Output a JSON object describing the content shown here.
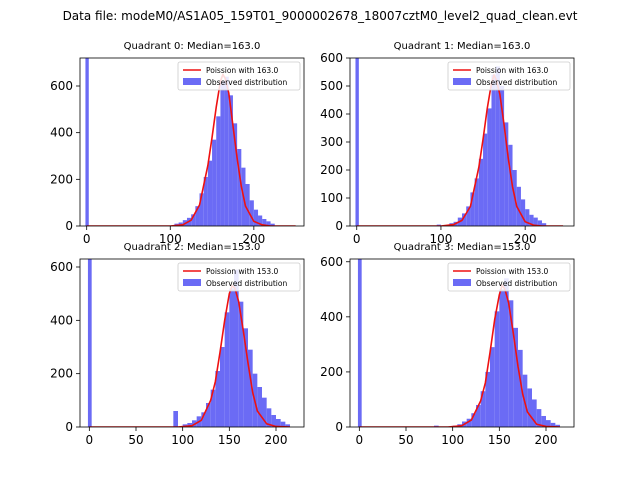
{
  "suptitle": "Data file: modeM0/AS1A05_159T01_9000002678_18007cztM0_level2_quad_clean.evt",
  "colors": {
    "hist": "#6b6bf5",
    "model": "#ee1111",
    "axis": "#000000"
  },
  "legend_labels": {
    "observed": "Observed distribution"
  },
  "chart_data": [
    {
      "type": "bar",
      "title": "Quadrant 0: Median=163.0",
      "model_label": "Poission with 163.0",
      "median": 163.0,
      "bin_width": 5,
      "xlim": [
        -8,
        260
      ],
      "ylim": [
        0,
        720
      ],
      "xticks": [
        0,
        100,
        200
      ],
      "yticks": [
        0,
        200,
        400,
        600
      ],
      "zero_bin_value": 720,
      "bins": [
        {
          "x": 105,
          "y": 10
        },
        {
          "x": 110,
          "y": 15
        },
        {
          "x": 115,
          "y": 25
        },
        {
          "x": 120,
          "y": 35
        },
        {
          "x": 125,
          "y": 50
        },
        {
          "x": 130,
          "y": 85
        },
        {
          "x": 135,
          "y": 140
        },
        {
          "x": 140,
          "y": 210
        },
        {
          "x": 145,
          "y": 280
        },
        {
          "x": 150,
          "y": 370
        },
        {
          "x": 155,
          "y": 470
        },
        {
          "x": 160,
          "y": 620
        },
        {
          "x": 165,
          "y": 640
        },
        {
          "x": 170,
          "y": 560
        },
        {
          "x": 175,
          "y": 440
        },
        {
          "x": 180,
          "y": 330
        },
        {
          "x": 185,
          "y": 250
        },
        {
          "x": 190,
          "y": 180
        },
        {
          "x": 195,
          "y": 110
        },
        {
          "x": 200,
          "y": 70
        },
        {
          "x": 205,
          "y": 45
        },
        {
          "x": 210,
          "y": 30
        },
        {
          "x": 215,
          "y": 20
        },
        {
          "x": 220,
          "y": 10
        }
      ],
      "model_curve": [
        {
          "x": 0,
          "y": 0
        },
        {
          "x": 100,
          "y": 0
        },
        {
          "x": 115,
          "y": 5
        },
        {
          "x": 125,
          "y": 25
        },
        {
          "x": 135,
          "y": 90
        },
        {
          "x": 145,
          "y": 260
        },
        {
          "x": 150,
          "y": 380
        },
        {
          "x": 155,
          "y": 510
        },
        {
          "x": 160,
          "y": 620
        },
        {
          "x": 163,
          "y": 650
        },
        {
          "x": 166,
          "y": 630
        },
        {
          "x": 170,
          "y": 570
        },
        {
          "x": 175,
          "y": 430
        },
        {
          "x": 180,
          "y": 290
        },
        {
          "x": 185,
          "y": 170
        },
        {
          "x": 190,
          "y": 85
        },
        {
          "x": 200,
          "y": 20
        },
        {
          "x": 210,
          "y": 5
        },
        {
          "x": 220,
          "y": 0
        },
        {
          "x": 250,
          "y": 0
        }
      ]
    },
    {
      "type": "bar",
      "title": "Quadrant 1: Median=163.0",
      "model_label": "Poission with 163.0",
      "median": 163.0,
      "bin_width": 5,
      "xlim": [
        -8,
        258
      ],
      "ylim": [
        0,
        600
      ],
      "xticks": [
        0,
        100,
        200
      ],
      "yticks": [
        0,
        100,
        200,
        300,
        400,
        500,
        600
      ],
      "zero_bin_value": 600,
      "bins": [
        {
          "x": 95,
          "y": 5
        },
        {
          "x": 110,
          "y": 10
        },
        {
          "x": 115,
          "y": 15
        },
        {
          "x": 120,
          "y": 30
        },
        {
          "x": 125,
          "y": 45
        },
        {
          "x": 130,
          "y": 70
        },
        {
          "x": 135,
          "y": 120
        },
        {
          "x": 140,
          "y": 170
        },
        {
          "x": 145,
          "y": 240
        },
        {
          "x": 150,
          "y": 330
        },
        {
          "x": 155,
          "y": 420
        },
        {
          "x": 160,
          "y": 540
        },
        {
          "x": 165,
          "y": 570
        },
        {
          "x": 170,
          "y": 500
        },
        {
          "x": 175,
          "y": 370
        },
        {
          "x": 180,
          "y": 290
        },
        {
          "x": 185,
          "y": 200
        },
        {
          "x": 190,
          "y": 140
        },
        {
          "x": 195,
          "y": 95
        },
        {
          "x": 200,
          "y": 60
        },
        {
          "x": 205,
          "y": 40
        },
        {
          "x": 210,
          "y": 30
        },
        {
          "x": 215,
          "y": 20
        },
        {
          "x": 220,
          "y": 10
        }
      ],
      "model_curve": [
        {
          "x": 0,
          "y": 0
        },
        {
          "x": 100,
          "y": 0
        },
        {
          "x": 115,
          "y": 5
        },
        {
          "x": 125,
          "y": 20
        },
        {
          "x": 135,
          "y": 70
        },
        {
          "x": 145,
          "y": 210
        },
        {
          "x": 150,
          "y": 310
        },
        {
          "x": 155,
          "y": 420
        },
        {
          "x": 160,
          "y": 510
        },
        {
          "x": 163,
          "y": 540
        },
        {
          "x": 166,
          "y": 520
        },
        {
          "x": 170,
          "y": 470
        },
        {
          "x": 175,
          "y": 360
        },
        {
          "x": 180,
          "y": 240
        },
        {
          "x": 185,
          "y": 140
        },
        {
          "x": 190,
          "y": 70
        },
        {
          "x": 200,
          "y": 15
        },
        {
          "x": 210,
          "y": 3
        },
        {
          "x": 220,
          "y": 0
        },
        {
          "x": 245,
          "y": 0
        }
      ]
    },
    {
      "type": "bar",
      "title": "Quadrant 2: Median=153.0",
      "model_label": "Poission with 153.0",
      "median": 153.0,
      "bin_width": 5,
      "xlim": [
        -10,
        230
      ],
      "ylim": [
        0,
        630
      ],
      "xticks": [
        0,
        50,
        100,
        150,
        200
      ],
      "yticks": [
        0,
        200,
        400,
        600
      ],
      "zero_bin_value": 630,
      "bins": [
        {
          "x": 90,
          "y": 60
        },
        {
          "x": 100,
          "y": 10
        },
        {
          "x": 105,
          "y": 15
        },
        {
          "x": 110,
          "y": 25
        },
        {
          "x": 115,
          "y": 40
        },
        {
          "x": 120,
          "y": 55
        },
        {
          "x": 125,
          "y": 90
        },
        {
          "x": 130,
          "y": 140
        },
        {
          "x": 135,
          "y": 210
        },
        {
          "x": 140,
          "y": 300
        },
        {
          "x": 145,
          "y": 430
        },
        {
          "x": 150,
          "y": 520
        },
        {
          "x": 155,
          "y": 590
        },
        {
          "x": 160,
          "y": 470
        },
        {
          "x": 165,
          "y": 370
        },
        {
          "x": 170,
          "y": 290
        },
        {
          "x": 175,
          "y": 200
        },
        {
          "x": 180,
          "y": 150
        },
        {
          "x": 185,
          "y": 110
        },
        {
          "x": 190,
          "y": 70
        },
        {
          "x": 195,
          "y": 45
        },
        {
          "x": 200,
          "y": 30
        },
        {
          "x": 205,
          "y": 20
        },
        {
          "x": 210,
          "y": 10
        }
      ],
      "model_curve": [
        {
          "x": 0,
          "y": 0
        },
        {
          "x": 95,
          "y": 0
        },
        {
          "x": 110,
          "y": 5
        },
        {
          "x": 120,
          "y": 25
        },
        {
          "x": 130,
          "y": 100
        },
        {
          "x": 135,
          "y": 170
        },
        {
          "x": 140,
          "y": 280
        },
        {
          "x": 145,
          "y": 400
        },
        {
          "x": 150,
          "y": 500
        },
        {
          "x": 153,
          "y": 530
        },
        {
          "x": 156,
          "y": 520
        },
        {
          "x": 160,
          "y": 470
        },
        {
          "x": 165,
          "y": 360
        },
        {
          "x": 170,
          "y": 240
        },
        {
          "x": 175,
          "y": 130
        },
        {
          "x": 180,
          "y": 60
        },
        {
          "x": 190,
          "y": 12
        },
        {
          "x": 200,
          "y": 2
        },
        {
          "x": 215,
          "y": 0
        }
      ]
    },
    {
      "type": "bar",
      "title": "Quadrant 3: Median=153.0",
      "model_label": "Poission with 153.0",
      "median": 153.0,
      "bin_width": 5,
      "xlim": [
        -10,
        230
      ],
      "ylim": [
        0,
        610
      ],
      "xticks": [
        0,
        50,
        100,
        150,
        200
      ],
      "yticks": [
        0,
        200,
        400,
        600
      ],
      "zero_bin_value": 610,
      "bins": [
        {
          "x": 80,
          "y": 5
        },
        {
          "x": 100,
          "y": 5
        },
        {
          "x": 105,
          "y": 10
        },
        {
          "x": 110,
          "y": 20
        },
        {
          "x": 115,
          "y": 30
        },
        {
          "x": 120,
          "y": 50
        },
        {
          "x": 125,
          "y": 80
        },
        {
          "x": 130,
          "y": 130
        },
        {
          "x": 135,
          "y": 200
        },
        {
          "x": 140,
          "y": 290
        },
        {
          "x": 145,
          "y": 420
        },
        {
          "x": 150,
          "y": 500
        },
        {
          "x": 155,
          "y": 540
        },
        {
          "x": 160,
          "y": 460
        },
        {
          "x": 165,
          "y": 360
        },
        {
          "x": 170,
          "y": 280
        },
        {
          "x": 175,
          "y": 190
        },
        {
          "x": 180,
          "y": 140
        },
        {
          "x": 185,
          "y": 100
        },
        {
          "x": 190,
          "y": 65
        },
        {
          "x": 195,
          "y": 40
        },
        {
          "x": 200,
          "y": 25
        },
        {
          "x": 205,
          "y": 15
        },
        {
          "x": 210,
          "y": 8
        }
      ],
      "model_curve": [
        {
          "x": 0,
          "y": 0
        },
        {
          "x": 95,
          "y": 0
        },
        {
          "x": 110,
          "y": 5
        },
        {
          "x": 120,
          "y": 25
        },
        {
          "x": 130,
          "y": 95
        },
        {
          "x": 135,
          "y": 160
        },
        {
          "x": 140,
          "y": 270
        },
        {
          "x": 145,
          "y": 390
        },
        {
          "x": 150,
          "y": 480
        },
        {
          "x": 153,
          "y": 515
        },
        {
          "x": 156,
          "y": 500
        },
        {
          "x": 160,
          "y": 450
        },
        {
          "x": 165,
          "y": 340
        },
        {
          "x": 170,
          "y": 220
        },
        {
          "x": 175,
          "y": 120
        },
        {
          "x": 180,
          "y": 55
        },
        {
          "x": 190,
          "y": 10
        },
        {
          "x": 200,
          "y": 2
        },
        {
          "x": 215,
          "y": 0
        }
      ]
    }
  ]
}
